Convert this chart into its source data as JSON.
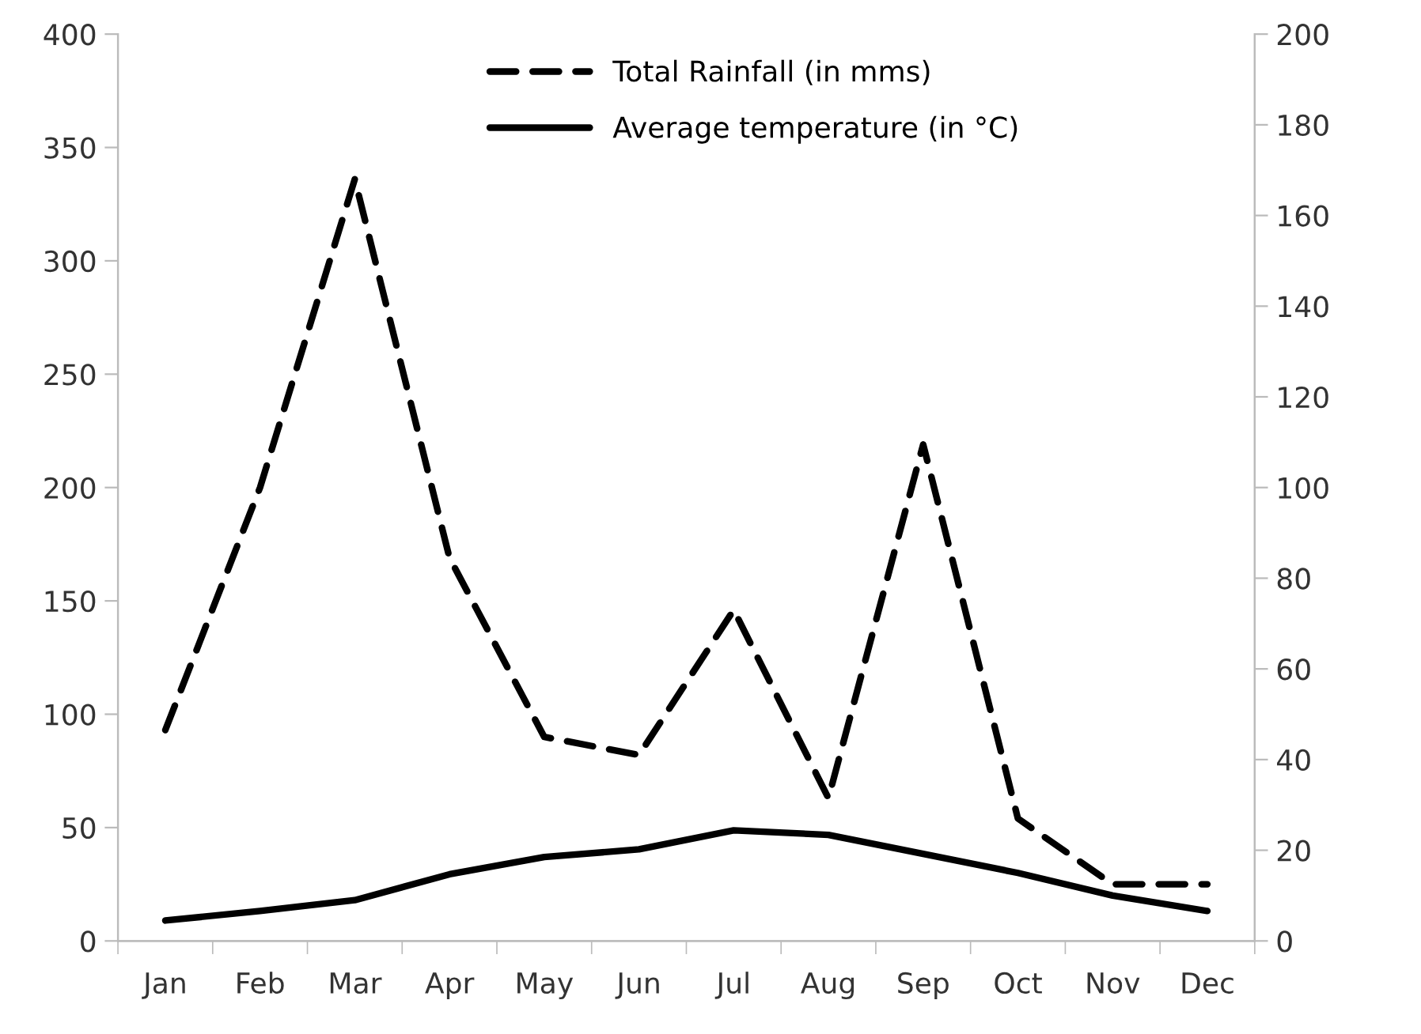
{
  "chart_data": {
    "type": "line",
    "categories": [
      "Jan",
      "Feb",
      "Mar",
      "Apr",
      "May",
      "Jun",
      "Jul",
      "Aug",
      "Sep",
      "Oct",
      "Nov",
      "Dec"
    ],
    "series": [
      {
        "name": "Total Rainfall (in mms)",
        "color": "#000000",
        "line_style": "dashed",
        "values": [
          93,
          200,
          336,
          169,
          90,
          82,
          146,
          63,
          219,
          54,
          25,
          25
        ]
      },
      {
        "name": "Average temperature (in °C)",
        "color": "#000000",
        "line_style": "solid",
        "axis": "y2",
        "values": [
          4.5,
          6.6,
          9,
          14.7,
          18.5,
          20.2,
          24.4,
          23.4,
          19.2,
          15,
          10,
          6.6
        ]
      }
    ],
    "ylim": [
      0,
      400
    ],
    "yticks": [
      0,
      50,
      100,
      150,
      200,
      250,
      300,
      350,
      400
    ],
    "y2lim": [
      0,
      200
    ],
    "y2ticks": [
      0,
      20,
      40,
      60,
      80,
      100,
      120,
      140,
      160,
      180,
      200
    ],
    "grid": false,
    "legend": "top",
    "marker": "none"
  }
}
